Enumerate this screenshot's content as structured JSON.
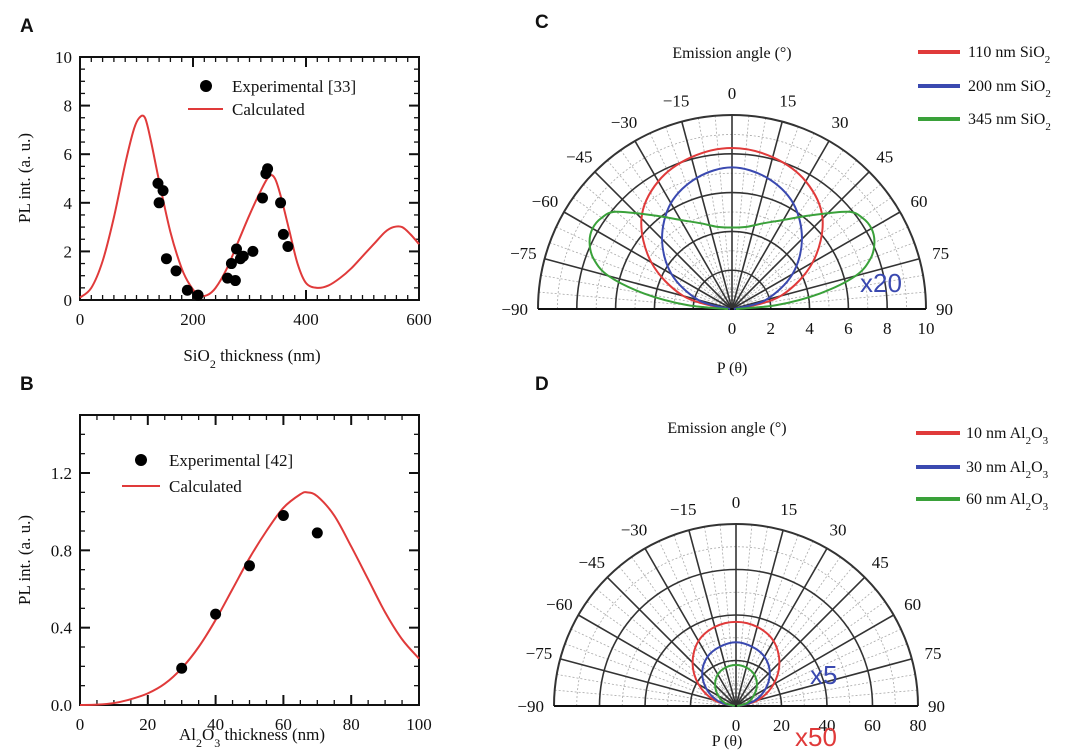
{
  "panel_letters": {
    "a": "A",
    "b": "B",
    "c": "C",
    "d": "D"
  },
  "colors": {
    "red": "#e03a3a",
    "blue": "#3a49b0",
    "green": "#3aa13a",
    "axis": "#111111",
    "grid": "#9a9a9a"
  },
  "chart_data": [
    {
      "panel": "A",
      "type": "scatter",
      "xlabel_main": "SiO",
      "xlabel_sub": "2",
      "xlabel_rest": " thickness (nm)",
      "ylabel": "PL int. (a. u.)",
      "xlim": [
        0,
        600
      ],
      "ylim": [
        0,
        10
      ],
      "x_ticks": [
        "0",
        "200",
        "400",
        "600"
      ],
      "y_ticks": [
        "0",
        "2",
        "4",
        "6",
        "8",
        "10"
      ],
      "grid": false,
      "legend_position": "top-right",
      "series": [
        {
          "name": "Experimental [33]",
          "kind": "scatter",
          "color": "#000000",
          "x": [
            138,
            140,
            147,
            153,
            170,
            190,
            209,
            261,
            268,
            275,
            277,
            284,
            289,
            306,
            323,
            329,
            332,
            355,
            360,
            368
          ],
          "y": [
            4.8,
            4.0,
            4.5,
            1.7,
            1.2,
            0.4,
            0.2,
            0.9,
            1.5,
            0.8,
            2.1,
            1.7,
            1.8,
            2.0,
            4.2,
            5.2,
            5.4,
            4.0,
            2.7,
            2.2
          ]
        },
        {
          "name": "Calculated",
          "kind": "line",
          "color": "#e03a3a",
          "x": [
            0,
            20,
            40,
            60,
            80,
            95,
            105,
            115,
            125,
            140,
            160,
            180,
            195,
            210,
            225,
            240,
            260,
            280,
            300,
            320,
            335,
            345,
            355,
            370,
            385,
            400,
            420,
            440,
            460,
            480,
            500,
            520,
            540,
            555,
            570,
            585,
            600
          ],
          "y": [
            0.1,
            0.5,
            1.6,
            3.4,
            5.6,
            7.0,
            7.5,
            7.5,
            6.6,
            4.9,
            2.8,
            1.3,
            0.6,
            0.2,
            0.2,
            0.5,
            1.3,
            2.4,
            3.5,
            4.5,
            5.1,
            5.0,
            4.3,
            2.9,
            1.5,
            0.7,
            0.5,
            0.6,
            0.9,
            1.3,
            1.8,
            2.3,
            2.8,
            3.0,
            3.0,
            2.7,
            2.3
          ]
        }
      ]
    },
    {
      "panel": "B",
      "type": "scatter",
      "xlabel_main": "Al",
      "xlabel_sub": "2",
      "xlabel_mid": "O",
      "xlabel_sub2": "3",
      "xlabel_rest": " thickness (nm)",
      "ylabel": "PL int. (a. u.)",
      "xlim": [
        0,
        100
      ],
      "ylim": [
        0,
        1.5
      ],
      "x_ticks": [
        "0",
        "20",
        "40",
        "60",
        "80",
        "100"
      ],
      "y_ticks": [
        "0.0",
        "0.4",
        "0.8",
        "1.2"
      ],
      "grid": false,
      "legend_position": "top-left",
      "series": [
        {
          "name": "Experimental [42]",
          "kind": "scatter",
          "color": "#000000",
          "x": [
            30,
            40,
            50,
            60,
            70
          ],
          "y": [
            0.19,
            0.47,
            0.72,
            0.98,
            0.89
          ]
        },
        {
          "name": "Calculated",
          "kind": "line",
          "color": "#e03a3a",
          "x": [
            0,
            5,
            10,
            15,
            20,
            25,
            30,
            35,
            40,
            45,
            50,
            55,
            60,
            65,
            67,
            70,
            75,
            80,
            85,
            90,
            95,
            100
          ],
          "y": [
            0.0,
            0.002,
            0.01,
            0.03,
            0.06,
            0.11,
            0.19,
            0.3,
            0.44,
            0.6,
            0.76,
            0.9,
            1.02,
            1.09,
            1.1,
            1.08,
            0.98,
            0.82,
            0.65,
            0.48,
            0.34,
            0.24
          ]
        }
      ]
    },
    {
      "panel": "C",
      "type": "polar",
      "title": "Emission angle (°)",
      "rlabel": "P (θ)",
      "angle_ticks": [
        "−90",
        "−75",
        "−60",
        "−45",
        "−30",
        "−15",
        "0",
        "15",
        "30",
        "45",
        "60",
        "75",
        "90"
      ],
      "r_ticks": [
        "0",
        "2",
        "4",
        "6",
        "8",
        "10"
      ],
      "rlim": [
        0,
        10
      ],
      "annotation": "x20",
      "annotation_color": "#3a49b0",
      "legend_position": "top-right",
      "legend": [
        {
          "label_main": "110 nm SiO",
          "label_sub": "2",
          "color": "#e03a3a"
        },
        {
          "label_main": "200 nm SiO",
          "label_sub": "2",
          "color": "#3a49b0"
        },
        {
          "label_main": "345 nm SiO",
          "label_sub": "2",
          "color": "#3aa13a"
        }
      ],
      "series": [
        {
          "name": "110 nm SiO2",
          "color": "#e03a3a",
          "theta": [
            0,
            15,
            30,
            45,
            60,
            75,
            90
          ],
          "r": [
            8.3,
            8.1,
            7.6,
            6.6,
            4.8,
            2.6,
            0.3
          ]
        },
        {
          "name": "200 nm SiO2",
          "color": "#3a49b0",
          "theta": [
            0,
            15,
            30,
            45,
            60,
            75,
            90
          ],
          "r": [
            7.3,
            7.0,
            6.3,
            5.1,
            3.6,
            1.8,
            0.1
          ]
        },
        {
          "name": "345 nm SiO2",
          "color": "#3aa13a",
          "theta": [
            0,
            10,
            20,
            30,
            40,
            50,
            55,
            60,
            65,
            70,
            75,
            80,
            85,
            90
          ],
          "r": [
            4.2,
            4.3,
            4.7,
            5.3,
            6.3,
            7.8,
            8.2,
            8.3,
            8.1,
            7.6,
            6.6,
            4.6,
            2.3,
            0.2
          ]
        }
      ]
    },
    {
      "panel": "D",
      "type": "polar",
      "title": "Emission angle (°)",
      "rlabel": "P (θ)",
      "angle_ticks": [
        "−90",
        "−75",
        "−60",
        "−45",
        "−30",
        "−15",
        "0",
        "15",
        "30",
        "45",
        "60",
        "75",
        "90"
      ],
      "r_ticks": [
        "0",
        "20",
        "40",
        "60",
        "80"
      ],
      "rlim": [
        0,
        80
      ],
      "annotations": [
        {
          "text": "x5",
          "color": "#3a49b0"
        },
        {
          "text": "x50",
          "color": "#e03a3a"
        }
      ],
      "legend_position": "top-right",
      "legend": [
        {
          "label_main": "10 nm Al",
          "label_sub": "2",
          "label_mid": "O",
          "label_sub2": "3",
          "color": "#e03a3a"
        },
        {
          "label_main": "30 nm Al",
          "label_sub": "2",
          "label_mid": "O",
          "label_sub2": "3",
          "color": "#3a49b0"
        },
        {
          "label_main": "60 nm Al",
          "label_sub": "2",
          "label_mid": "O",
          "label_sub2": "3",
          "color": "#3aa13a"
        }
      ],
      "series": [
        {
          "name": "10 nm Al2O3",
          "color": "#e03a3a",
          "theta": [
            0,
            15,
            30,
            45,
            60,
            75,
            90
          ],
          "r": [
            37,
            36,
            33,
            27,
            19,
            10,
            1
          ]
        },
        {
          "name": "30 nm Al2O3",
          "color": "#3a49b0",
          "theta": [
            0,
            15,
            30,
            45,
            60,
            75,
            90
          ],
          "r": [
            28,
            27,
            25,
            21,
            15,
            8,
            1
          ]
        },
        {
          "name": "60 nm Al2O3",
          "color": "#3aa13a",
          "theta": [
            0,
            15,
            30,
            45,
            60,
            75,
            90
          ],
          "r": [
            18,
            17.5,
            16,
            13,
            9,
            5,
            0.5
          ]
        }
      ]
    }
  ]
}
